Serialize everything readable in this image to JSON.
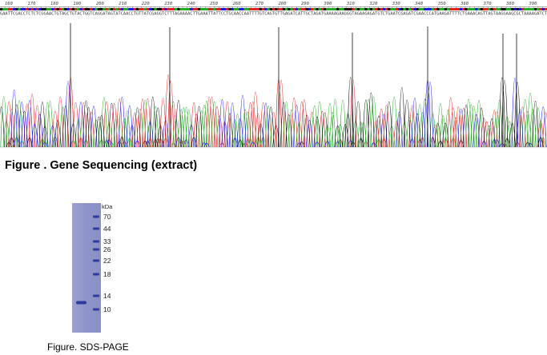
{
  "sequencing": {
    "caption": "Figure . Gene Sequencing (extract)",
    "position_ticks": [
      "160",
      "170",
      "180",
      "190",
      "200",
      "210",
      "220",
      "230",
      "240",
      "250",
      "260",
      "270",
      "280",
      "290",
      "300",
      "310",
      "320",
      "330",
      "340",
      "350",
      "360",
      "370",
      "380",
      "390"
    ],
    "sequence": "GAATTCGACCTCTCTCGGAACTGTAGCTGTACTGGTCAGGATAGTATCAACCTGTTATCGAGGTCTTTAGAAAACTTGAAATTATTCCTGCAACCAATTTTGTCAGTGTTGAGATCATTGCTAGATGAAAAGAAGGGTAGAAGAGATGTCTGAATCGAGATCGAACCCATGAAGATTTTCTGAAACAGTTAGTAAGGAAGCGCTAAAAGATCT",
    "colors": {
      "A": "#22aa22",
      "C": "#1a1aee",
      "G": "#111111",
      "T": "#dd2222"
    }
  },
  "gel": {
    "caption": "Figure. SDS-PAGE",
    "unit": "kDa",
    "markers": [
      "70",
      "44",
      "33",
      "26",
      "22",
      "18",
      "14",
      "10"
    ],
    "background": "#8e94c8",
    "band_color": "#2f3a9c"
  }
}
